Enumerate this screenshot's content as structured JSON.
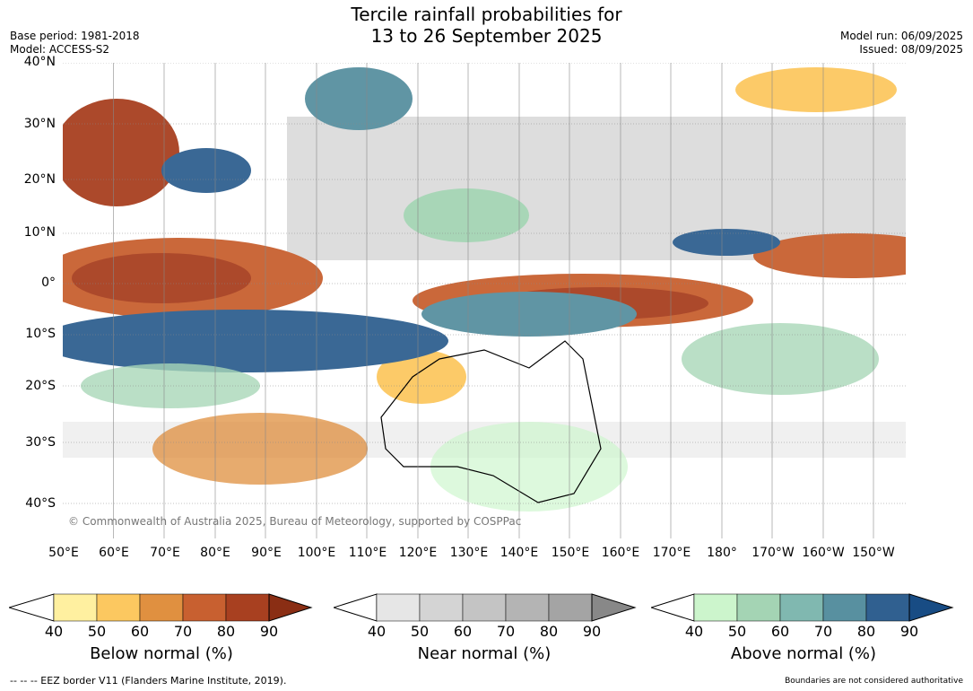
{
  "title_line1": "Tercile rainfall probabilities for",
  "title_line2": "13 to 26 September 2025",
  "meta_left": [
    "Base period: 1981-2018",
    "Model: ACCESS-S2"
  ],
  "meta_right": [
    "Model run: 06/09/2025",
    "Issued: 08/09/2025"
  ],
  "lat_labels": [
    "40°N",
    "30°N",
    "20°N",
    "10°N",
    "0°",
    "10°S",
    "20°S",
    "30°S",
    "40°S"
  ],
  "lon_labels": [
    "50°E",
    "60°E",
    "70°E",
    "80°E",
    "90°E",
    "100°E",
    "110°E",
    "120°E",
    "130°E",
    "140°E",
    "150°E",
    "160°E",
    "170°E",
    "180°",
    "170°W",
    "160°W",
    "150°W"
  ],
  "credit": "© Commonwealth of Australia 2025, Bureau of Meteorology, supported by COSPPac",
  "colorbars": [
    {
      "title": "Below normal (%)",
      "ticks": [
        "40",
        "50",
        "60",
        "70",
        "80",
        "90"
      ],
      "colors": [
        "#fff0a0",
        "#fcc860",
        "#e09040",
        "#c86030",
        "#a84020"
      ],
      "over": "#8a2e14"
    },
    {
      "title": "Near normal (%)",
      "ticks": [
        "40",
        "50",
        "60",
        "70",
        "80",
        "90"
      ],
      "colors": [
        "#e6e6e6",
        "#d4d4d4",
        "#c4c4c4",
        "#b4b4b4",
        "#a4a4a4"
      ],
      "over": "#888888"
    },
    {
      "title": "Above normal (%)",
      "ticks": [
        "40",
        "50",
        "60",
        "70",
        "80",
        "90"
      ],
      "colors": [
        "#ccf5cc",
        "#a4d4b4",
        "#80b8b0",
        "#5890a0",
        "#306090"
      ],
      "over": "#184c84"
    }
  ],
  "footer_left": "--  --  -- EEZ border V11 (Flanders Marine Institute, 2019).",
  "footer_right": "Boundaries are not considered authoritative"
}
